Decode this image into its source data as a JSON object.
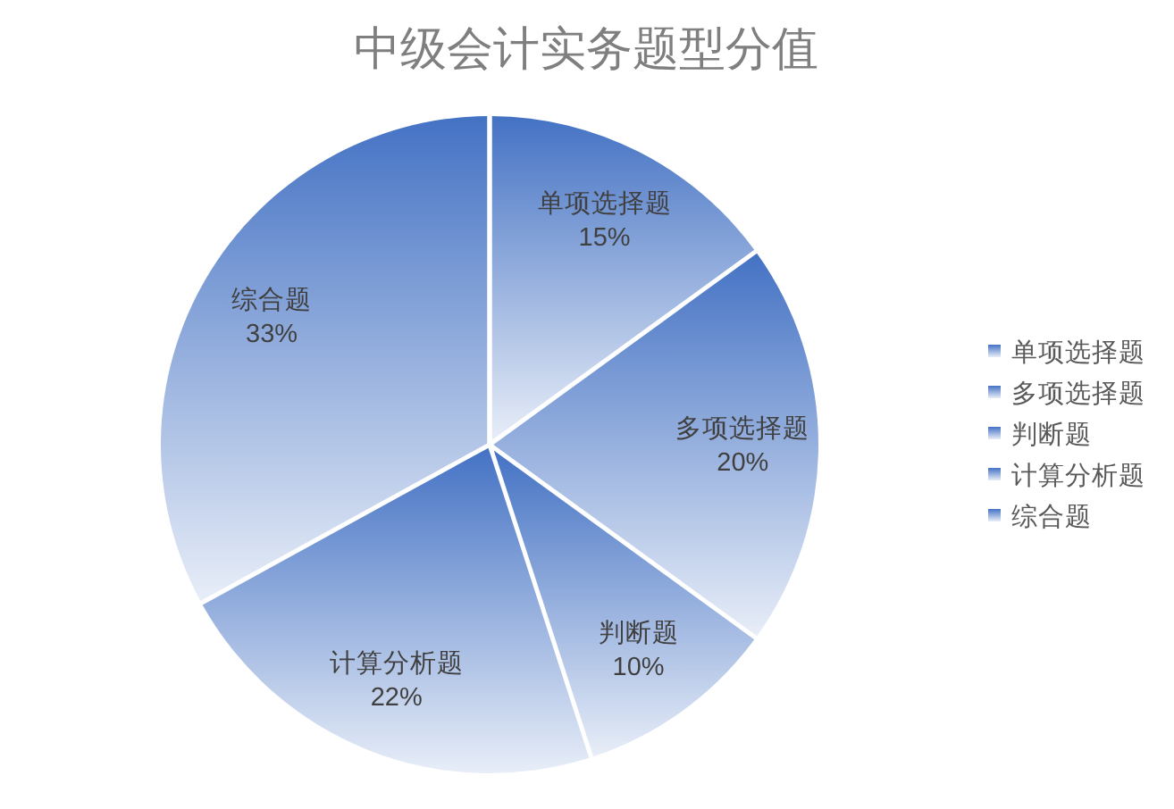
{
  "chart_data": {
    "type": "pie",
    "title": "中级会计实务题型分值",
    "categories": [
      "单项选择题",
      "多项选择题",
      "判断题",
      "计算分析题",
      "综合题"
    ],
    "values": [
      15,
      20,
      10,
      22,
      33
    ],
    "value_labels": [
      "15%",
      "20%",
      "10%",
      "22%",
      "33%"
    ],
    "colors": [
      "#4472c4",
      "#4472c4",
      "#4472c4",
      "#4472c4",
      "#4472c4"
    ],
    "legend": "right"
  }
}
